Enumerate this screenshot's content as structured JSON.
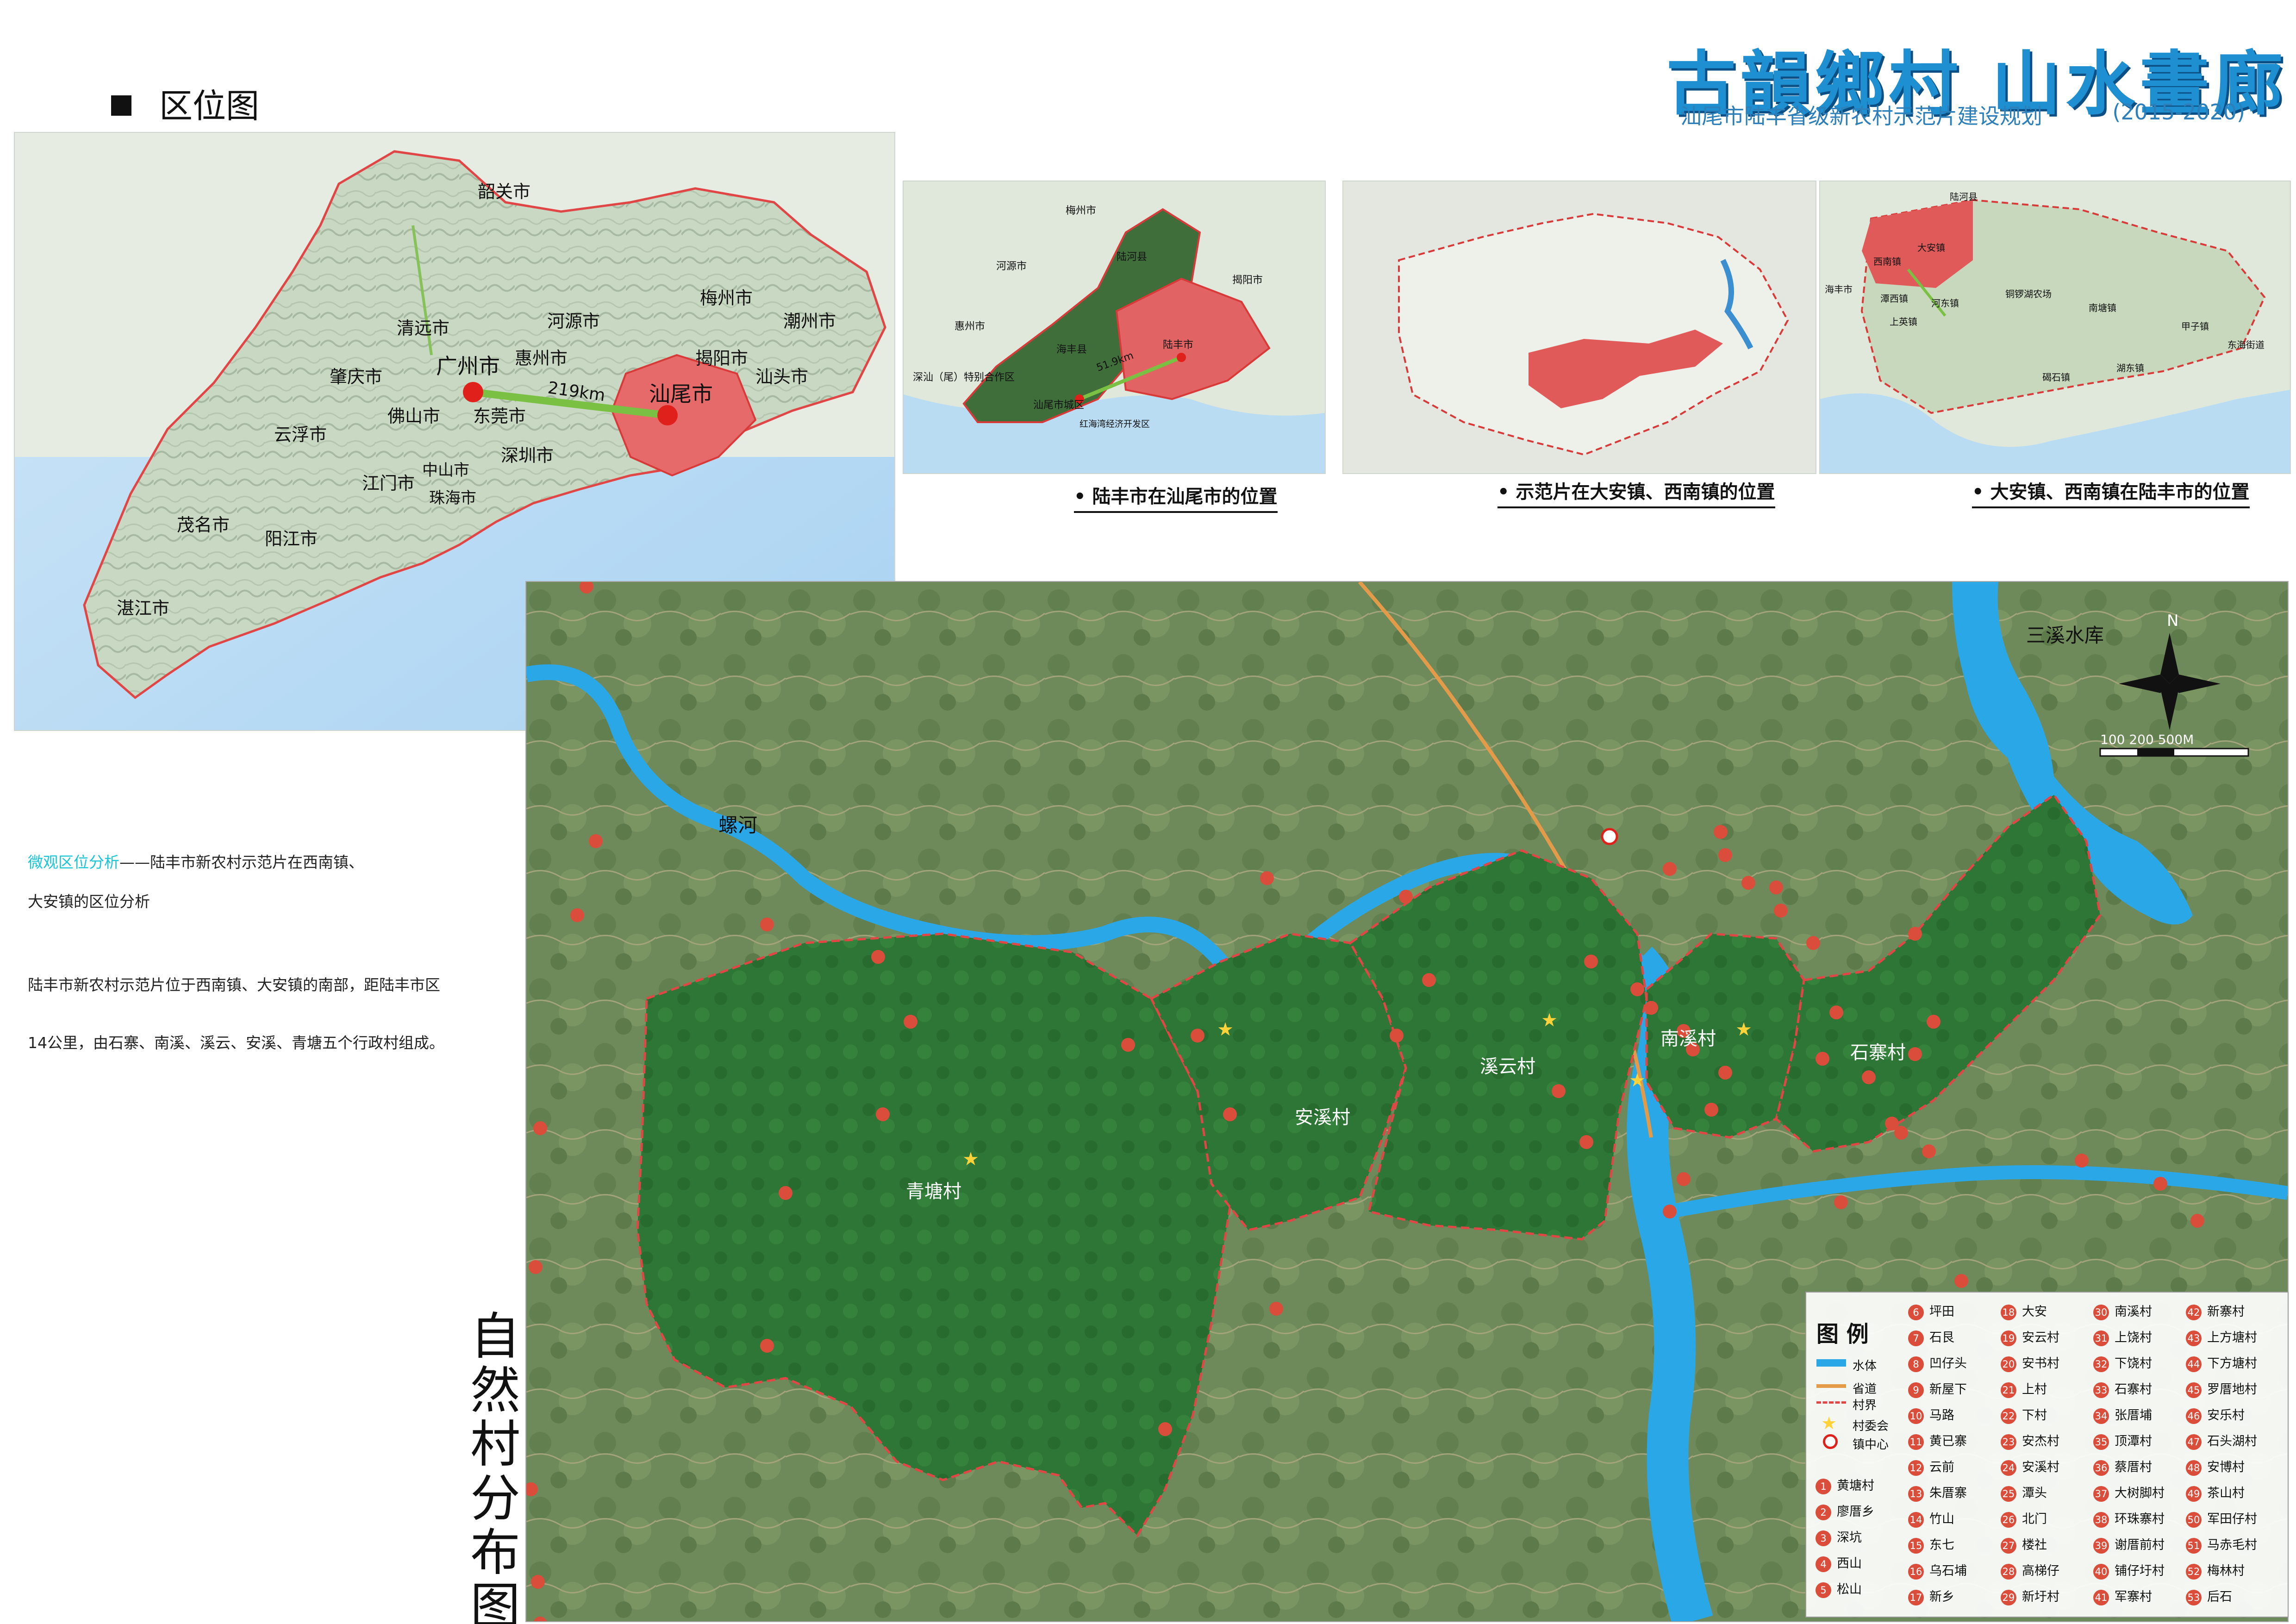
{
  "header": {
    "title": "古韻鄉村 山水畫廊",
    "subtitle": "汕尾市陆丰省级新农村示范片建设规划",
    "years": "(2015-2020)"
  },
  "section": {
    "title": "区位图"
  },
  "guangdong_map": {
    "cities": [
      "韶关市",
      "清远市",
      "河源市",
      "梅州市",
      "潮州市",
      "揭阳市",
      "汕头市",
      "惠州市",
      "广州市",
      "肇庆市",
      "云浮市",
      "佛山市",
      "东莞市",
      "深圳市",
      "中山市",
      "江门市",
      "珠海市",
      "阳江市",
      "茂名市",
      "湛江市",
      "汕尾市"
    ],
    "distance_label": "219km"
  },
  "inset1": {
    "caption": "• 陆丰市在汕尾市的位置",
    "labels": [
      "梅州市",
      "河源市",
      "陆河县",
      "揭阳市",
      "惠州市",
      "海丰县",
      "陆丰市",
      "深汕（尾）特别合作区",
      "汕尾市城区",
      "红海湾经济开发区"
    ],
    "distance_label": "51.9km"
  },
  "inset2": {
    "caption": "• 示范片在大安镇、西南镇的位置"
  },
  "inset3": {
    "caption": "• 大安镇、西南镇在陆丰市的位置",
    "labels": [
      "陆河县",
      "大安镇",
      "西南镇",
      "海丰市",
      "上英镇",
      "河东镇",
      "潭西镇",
      "铜锣湖农场",
      "南塘镇",
      "甲子镇",
      "东海街道",
      "碣石镇",
      "湖东镇"
    ]
  },
  "notes": {
    "line1_highlight": "微观区位分析",
    "line1_rest": "——陆丰市新农村示范片在西南镇、",
    "line2": "大安镇的区位分析",
    "para_line1": "陆丰市新农村示范片位于西南镇、大安镇的南部，距陆丰市区",
    "para_line2": "14公里，由石寨、南溪、溪云、安溪、青塘五个行政村组成。"
  },
  "main_map": {
    "vertical_title": "自然村分布图",
    "villages": [
      "青塘村",
      "安溪村",
      "溪云村",
      "南溪村",
      "石寨村"
    ],
    "reservoir_label": "三溪水库",
    "river_label_1": "螺河",
    "north_label": "N",
    "scale_label": "100 200 500M"
  },
  "legend": {
    "title": "图 例",
    "symbols": [
      "水体",
      "省道",
      "村界",
      "村委会",
      "镇中心"
    ],
    "col1": [
      "黄塘村",
      "廖厝乡",
      "深坑",
      "西山",
      "松山"
    ],
    "col2": [
      "坪田",
      "石艮",
      "凹仔头",
      "新屋下",
      "马路",
      "黄已寨",
      "云前",
      "朱厝寨",
      "竹山",
      "东七",
      "乌石埔",
      "新乡"
    ],
    "col3": [
      "大安",
      "安云村",
      "安书村",
      "上村",
      "下村",
      "安杰村",
      "安溪村",
      "潭头",
      "北门",
      "楼社",
      "高梯仔",
      "新圩村"
    ],
    "col4": [
      "南溪村",
      "上饶村",
      "下饶村",
      "石寨村",
      "张厝埔",
      "顶潭村",
      "蔡厝村",
      "大树脚村",
      "环珠寨村",
      "谢厝前村",
      "铺仔圩村",
      "军寨村"
    ],
    "col5": [
      "新寨村",
      "上方塘村",
      "下方塘村",
      "罗厝地村",
      "安乐村",
      "石头湖村",
      "安博村",
      "茶山村",
      "军田仔村",
      "马赤毛村",
      "梅林村",
      "后石"
    ]
  },
  "colors": {
    "village_green": "#2f7a3a",
    "highlight_red": "#e05a5a",
    "water": "#2aa7e6",
    "title_blue": "#1e8fd0",
    "badge": "#d94d3a"
  }
}
